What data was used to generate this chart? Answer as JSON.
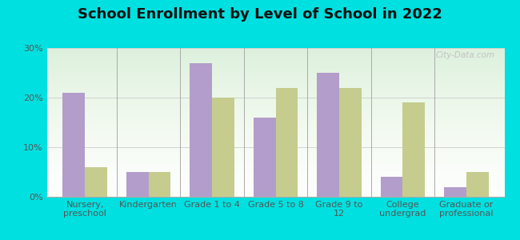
{
  "title": "School Enrollment by Level of School in 2022",
  "categories": [
    "Nursery,\npreschool",
    "Kindergarten",
    "Grade 1 to 4",
    "Grade 5 to 8",
    "Grade 9 to\n12",
    "College\nundergrad",
    "Graduate or\nprofessional"
  ],
  "zip_values": [
    21,
    5,
    27,
    16,
    25,
    4,
    2
  ],
  "mo_values": [
    6,
    5,
    20,
    22,
    22,
    19,
    5
  ],
  "zip_color": "#b39dca",
  "mo_color": "#c5cc8e",
  "bg_color": "#00e0e0",
  "ylim": [
    0,
    30
  ],
  "yticks": [
    0,
    10,
    20,
    30
  ],
  "ytick_labels": [
    "0%",
    "10%",
    "20%",
    "30%"
  ],
  "bar_width": 0.35,
  "title_fontsize": 13,
  "tick_fontsize": 8,
  "legend_fontsize": 9,
  "watermark": "City-Data.com"
}
